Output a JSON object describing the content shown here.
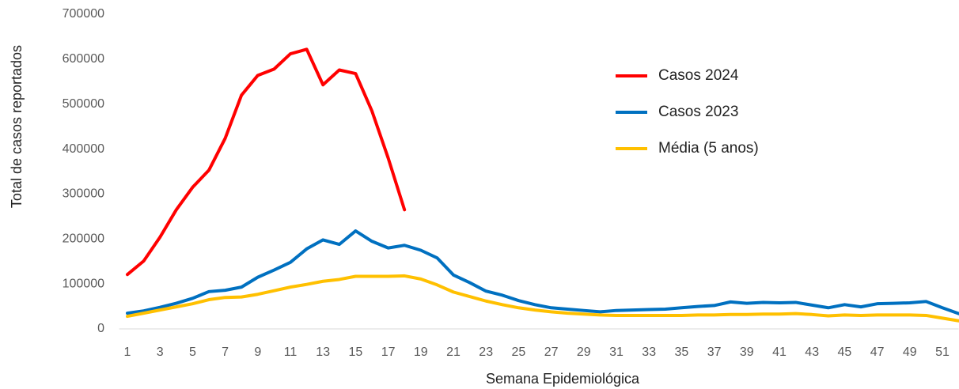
{
  "chart_data": {
    "type": "line",
    "x_label": "Semana Epidemiológica",
    "y_label": "Total de casos reportados",
    "x": [
      1,
      2,
      3,
      4,
      5,
      6,
      7,
      8,
      9,
      10,
      11,
      12,
      13,
      14,
      15,
      16,
      17,
      18,
      19,
      20,
      21,
      22,
      23,
      24,
      25,
      26,
      27,
      28,
      29,
      30,
      31,
      32,
      33,
      34,
      35,
      36,
      37,
      38,
      39,
      40,
      41,
      42,
      43,
      44,
      45,
      46,
      47,
      48,
      49,
      50,
      51,
      52
    ],
    "xlim": [
      0.5,
      52
    ],
    "xticks": [
      1,
      3,
      5,
      7,
      9,
      11,
      13,
      15,
      17,
      19,
      21,
      23,
      25,
      27,
      29,
      31,
      33,
      35,
      37,
      39,
      41,
      43,
      45,
      47,
      49,
      51
    ],
    "ylim": [
      0,
      700000
    ],
    "yticks": [
      0,
      100000,
      200000,
      300000,
      400000,
      500000,
      600000,
      700000
    ],
    "grid": false,
    "legend": "upper-right",
    "series": [
      {
        "name": "Casos 2024",
        "color": "#ff0000",
        "values": [
          121000,
          151000,
          204000,
          265000,
          315000,
          353000,
          424000,
          520000,
          564000,
          578000,
          612000,
          622000,
          543000,
          576000,
          568000,
          485000,
          380000,
          265000,
          null,
          null,
          null,
          null,
          null,
          null,
          null,
          null,
          null,
          null,
          null,
          null,
          null,
          null,
          null,
          null,
          null,
          null,
          null,
          null,
          null,
          null,
          null,
          null,
          null,
          null,
          null,
          null,
          null,
          null,
          null,
          null,
          null,
          null
        ]
      },
      {
        "name": "Casos 2023",
        "color": "#0070c0",
        "values": [
          35000,
          40000,
          48000,
          57000,
          68000,
          83000,
          86000,
          93000,
          115000,
          131000,
          148000,
          178000,
          198000,
          188000,
          218000,
          195000,
          180000,
          186000,
          175000,
          158000,
          120000,
          103000,
          84000,
          75000,
          63000,
          54000,
          47000,
          44000,
          41000,
          38000,
          41000,
          42000,
          43000,
          44000,
          47000,
          50000,
          52000,
          60000,
          57000,
          59000,
          58000,
          59000,
          53000,
          47000,
          54000,
          49000,
          56000,
          57000,
          58000,
          61000,
          47000,
          34000
        ]
      },
      {
        "name": "Média (5 anos)",
        "color": "#ffc000",
        "values": [
          28000,
          35000,
          42000,
          49000,
          56000,
          65000,
          70000,
          71000,
          77000,
          85000,
          93000,
          99000,
          106000,
          110000,
          117000,
          117000,
          117000,
          118000,
          111000,
          98000,
          82000,
          72000,
          62000,
          54000,
          47000,
          42000,
          38000,
          35000,
          33000,
          31000,
          30000,
          30000,
          30000,
          30000,
          30000,
          31000,
          31000,
          32000,
          32000,
          33000,
          33000,
          34000,
          32000,
          29000,
          31000,
          30000,
          31000,
          31000,
          31000,
          30000,
          24000,
          18000
        ]
      }
    ]
  }
}
